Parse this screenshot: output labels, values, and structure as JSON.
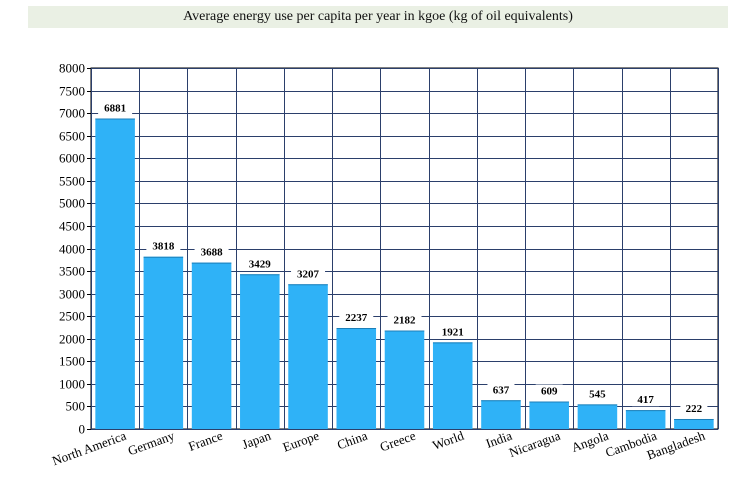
{
  "chart_data": {
    "type": "bar",
    "title": "Average energy use per capita per year in kgoe (kg of oil equivalents)",
    "categories": [
      "North America",
      "Germany",
      "France",
      "Japan",
      "Europe",
      "China",
      "Greece",
      "World",
      "India",
      "Nicaragua",
      "Angola",
      "Cambodia",
      "Bangladesh"
    ],
    "values": [
      6881,
      3818,
      3688,
      3429,
      3207,
      2237,
      2182,
      1921,
      637,
      609,
      545,
      417,
      222
    ],
    "xlabel": "",
    "ylabel": "",
    "ylim": [
      0,
      8000
    ],
    "ytick_step": 500,
    "grid": true,
    "bar_color": "#2fb2f7"
  }
}
